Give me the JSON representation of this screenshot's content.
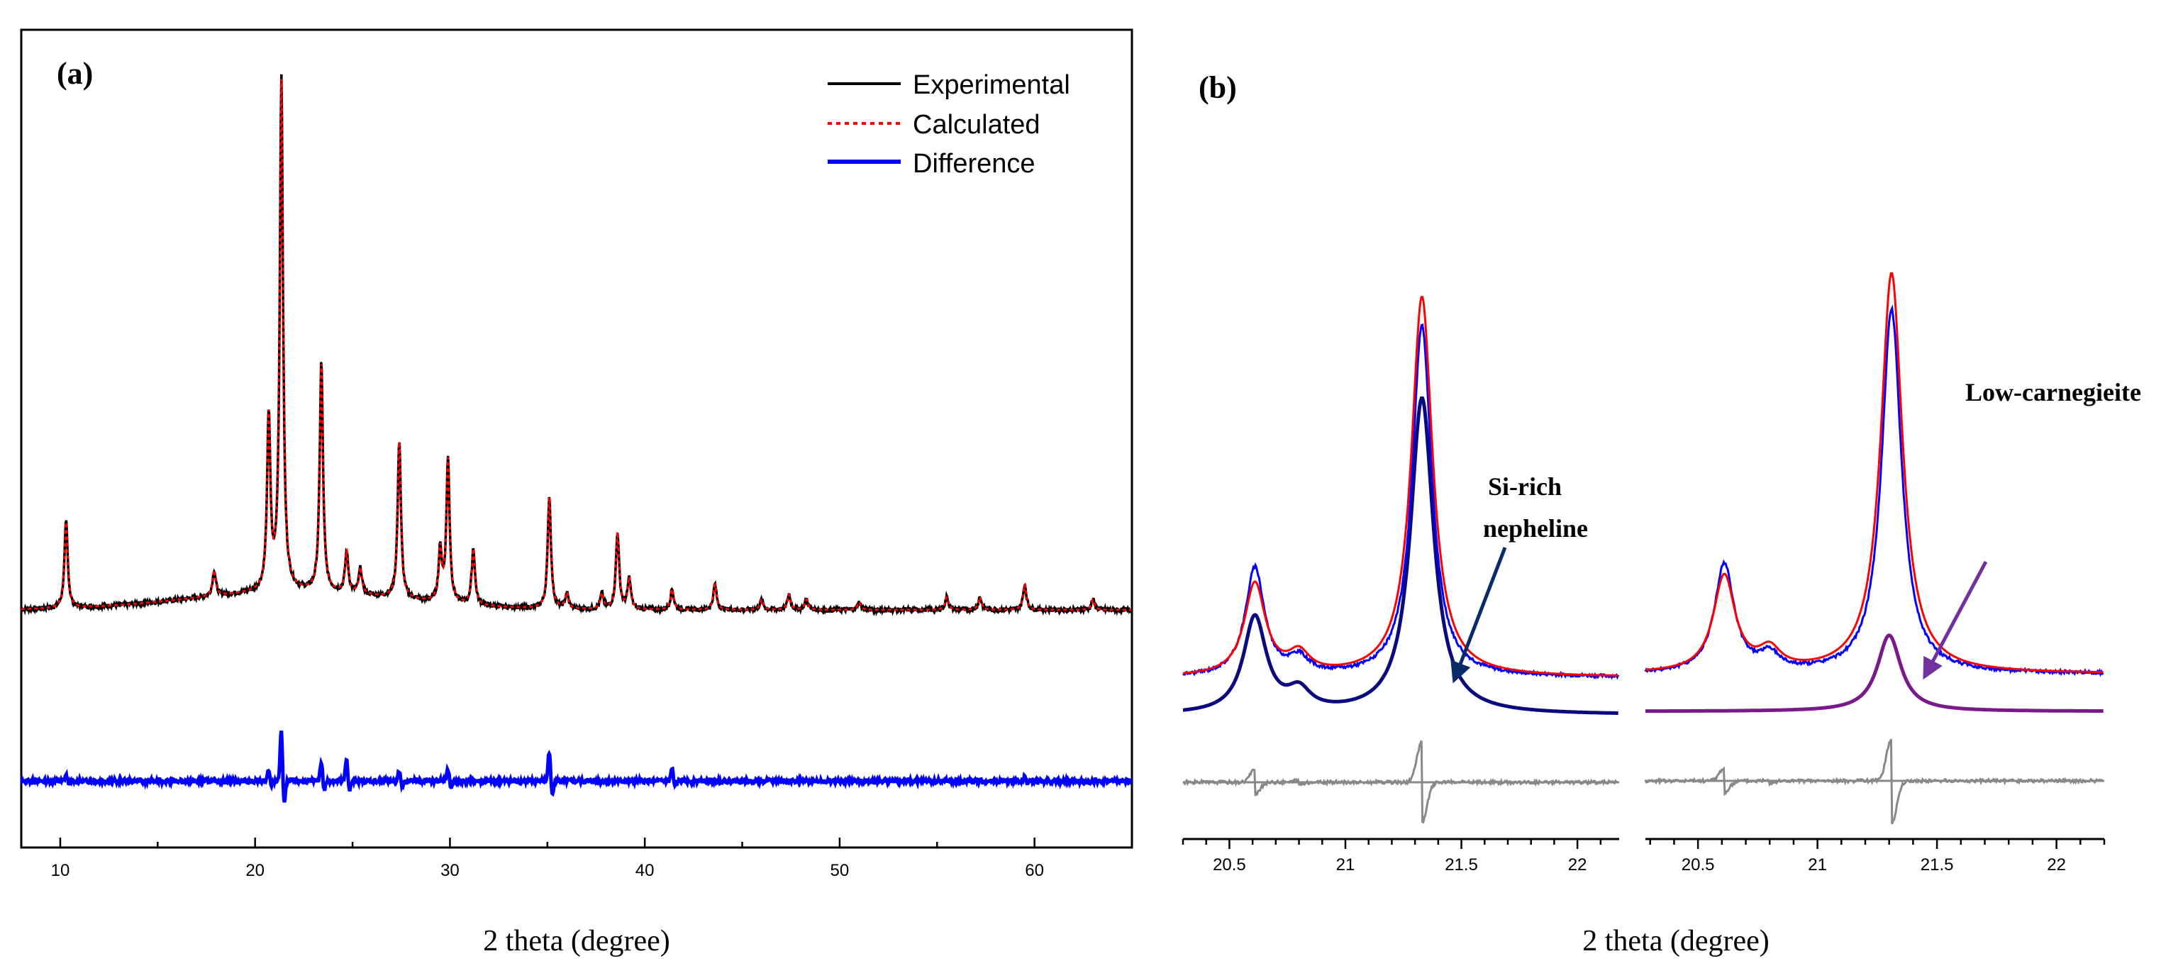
{
  "colors": {
    "experimental": "#000000",
    "calculated": "#ff0000",
    "difference": "#0000ff",
    "b_observed": "#0000ff",
    "b_calculated": "#ff0000",
    "nepheline": "#0a0a80",
    "carnegieite": "#7a1a8a",
    "b_difference": "#888888"
  },
  "chart_data": [
    {
      "id": "a",
      "type": "line",
      "panel_label": "(a)",
      "xlabel": "2 theta (degree)",
      "ylabel": "",
      "xlim": [
        8,
        65
      ],
      "xticks": [
        10,
        20,
        30,
        40,
        50,
        60
      ],
      "ylim": [
        -0.45,
        1.15
      ],
      "legend_position": "top-right",
      "legend": [
        "Experimental",
        "Calculated",
        "Difference"
      ],
      "peaks": [
        {
          "x": 10.3,
          "h": 0.17
        },
        {
          "x": 17.9,
          "h": 0.05
        },
        {
          "x": 20.7,
          "h": 0.34
        },
        {
          "x": 21.35,
          "h": 1.0
        },
        {
          "x": 23.4,
          "h": 0.45
        },
        {
          "x": 24.7,
          "h": 0.08
        },
        {
          "x": 25.4,
          "h": 0.05
        },
        {
          "x": 27.4,
          "h": 0.31
        },
        {
          "x": 29.5,
          "h": 0.1
        },
        {
          "x": 29.9,
          "h": 0.28
        },
        {
          "x": 31.2,
          "h": 0.11
        },
        {
          "x": 35.1,
          "h": 0.22
        },
        {
          "x": 36.0,
          "h": 0.03
        },
        {
          "x": 37.8,
          "h": 0.03
        },
        {
          "x": 38.6,
          "h": 0.15
        },
        {
          "x": 39.2,
          "h": 0.06
        },
        {
          "x": 41.4,
          "h": 0.04
        },
        {
          "x": 43.6,
          "h": 0.05
        },
        {
          "x": 46.0,
          "h": 0.02
        },
        {
          "x": 47.4,
          "h": 0.03
        },
        {
          "x": 48.3,
          "h": 0.02
        },
        {
          "x": 51.0,
          "h": 0.015
        },
        {
          "x": 55.5,
          "h": 0.025
        },
        {
          "x": 57.2,
          "h": 0.025
        },
        {
          "x": 59.5,
          "h": 0.05
        },
        {
          "x": 63.0,
          "h": 0.02
        }
      ],
      "difference_offset": -0.32,
      "difference_features": [
        {
          "x": 10.3,
          "h": 0.012
        },
        {
          "x": 20.7,
          "h": 0.02
        },
        {
          "x": 21.35,
          "h": 0.1
        },
        {
          "x": 23.4,
          "h": 0.04
        },
        {
          "x": 24.7,
          "h": 0.045
        },
        {
          "x": 27.4,
          "h": 0.02
        },
        {
          "x": 29.9,
          "h": 0.025
        },
        {
          "x": 35.1,
          "h": 0.06
        },
        {
          "x": 41.4,
          "h": 0.025
        },
        {
          "x": 59.5,
          "h": 0.01
        }
      ]
    },
    {
      "id": "b",
      "type": "line",
      "panel_label": "(b)",
      "xlabel": "2 theta (degree)",
      "subplots": [
        {
          "id": "b-left",
          "xlim": [
            20.3,
            22.18
          ],
          "xticks": [
            20.5,
            21,
            21.5,
            22
          ],
          "xtick_labels": [
            "20.5",
            "21",
            "21.5",
            "22"
          ],
          "annotation": [
            "Si-rich",
            "nepheline"
          ],
          "arrow_target_x": 21.47,
          "phase": "nepheline",
          "peaks_observed": [
            {
              "x": 20.61,
              "h": 0.27
            },
            {
              "x": 20.8,
              "h": 0.04
            },
            {
              "x": 21.33,
              "h": 0.88
            }
          ],
          "peaks_calculated": [
            {
              "x": 20.61,
              "h": 0.23
            },
            {
              "x": 20.8,
              "h": 0.05
            },
            {
              "x": 21.33,
              "h": 0.95
            }
          ],
          "peaks_phase": [
            {
              "x": 20.61,
              "h": 0.24
            },
            {
              "x": 20.8,
              "h": 0.05
            },
            {
              "x": 21.33,
              "h": 0.79
            }
          ]
        },
        {
          "id": "b-right",
          "xlim": [
            20.28,
            22.2
          ],
          "xticks": [
            20.5,
            21,
            21.5,
            22
          ],
          "xtick_labels": [
            "20.5",
            "21",
            "21.5",
            "22"
          ],
          "annotation": [
            "Low-carnegieite"
          ],
          "arrow_target_x": 21.45,
          "phase": "carnegieite",
          "peaks_observed": [
            {
              "x": 20.61,
              "h": 0.27
            },
            {
              "x": 20.8,
              "h": 0.04
            },
            {
              "x": 21.31,
              "h": 0.91
            }
          ],
          "peaks_calculated": [
            {
              "x": 20.61,
              "h": 0.24
            },
            {
              "x": 20.8,
              "h": 0.05
            },
            {
              "x": 21.31,
              "h": 1.0
            }
          ],
          "peaks_phase": [
            {
              "x": 21.3,
              "h": 0.19
            }
          ]
        }
      ]
    }
  ]
}
